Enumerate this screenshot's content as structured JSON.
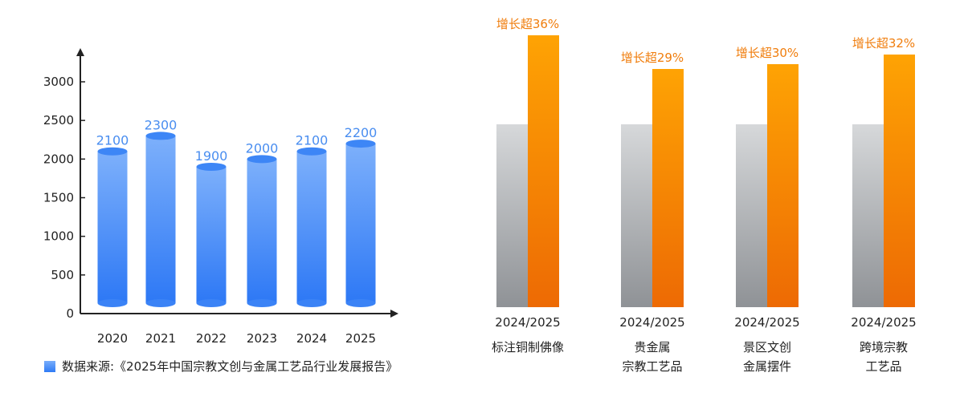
{
  "chart_data": [
    {
      "type": "bar",
      "style": "cylinder",
      "categories": [
        "2020",
        "2021",
        "2022",
        "2023",
        "2024",
        "2025"
      ],
      "values": [
        2100,
        2300,
        1900,
        2000,
        2100,
        2200
      ],
      "data_labels": [
        "2100",
        "2300",
        "1900",
        "2000",
        "2100",
        "2200"
      ],
      "yticks": [
        "0",
        "500",
        "1000",
        "1500",
        "2000",
        "2500",
        "3000"
      ],
      "ylim": [
        0,
        3000
      ],
      "grid": false,
      "color": "#3a84f6",
      "legend": {
        "label": "数据来源:《2025年中国宗教文创与金属工艺品行业发展报告》",
        "placement": "bottom-left"
      }
    },
    {
      "type": "bar",
      "categories": [
        {
          "period": "2024/2025",
          "lines": [
            "标注铜制佛像"
          ]
        },
        {
          "period": "2024/2025",
          "lines": [
            "贵金属",
            "宗教工艺品"
          ]
        },
        {
          "period": "2024/2025",
          "lines": [
            "景区文创",
            "金属摆件"
          ]
        },
        {
          "period": "2024/2025",
          "lines": [
            "跨境宗教",
            "工艺品"
          ]
        }
      ],
      "growth_pct": [
        36,
        29,
        30,
        32
      ],
      "annotations": [
        "增长超36%",
        "增长超29%",
        "增长超30%",
        "增长超32%"
      ],
      "series_colors": {
        "2024": "#b9bcbf",
        "2025": "#f58a06"
      }
    }
  ]
}
